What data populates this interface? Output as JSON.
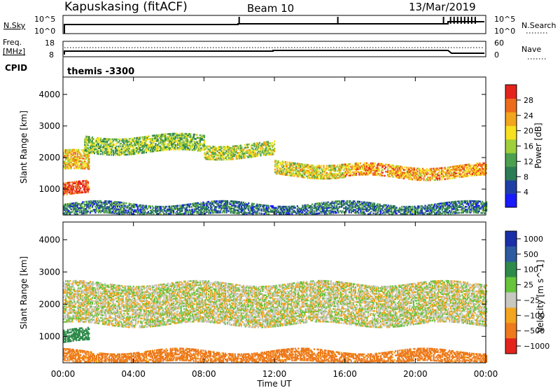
{
  "header": {
    "station": "Kapuskasing (fitACF)",
    "beam": "Beam 10",
    "date": "13/Mar/2019"
  },
  "top_panels": {
    "nsky_label": "N.Sky",
    "nsky_ticks": [
      "10^5",
      "10^0"
    ],
    "nsearch_label": "N.Search",
    "nsearch_ticks": [
      "10^5",
      "10^0"
    ],
    "freq_label": "Freq.",
    "freq_unit": "[MHz]",
    "freq_ticks": [
      "18",
      "8"
    ],
    "nave_label": "Nave",
    "nave_ticks": [
      "60",
      "0"
    ],
    "cpid_label": "CPID",
    "cpid_value": "themis -3300"
  },
  "colors": {
    "power": [
      "#1a1aff",
      "#1f3fa6",
      "#2c7d55",
      "#4da050",
      "#9fcf3a",
      "#f6e020",
      "#f2a51e",
      "#ee6b1c",
      "#e4231c"
    ],
    "velocity": [
      "#1b2fa8",
      "#2d5aa0",
      "#2e8a4a",
      "#68c43c",
      "#c8c8c0",
      "#f2a51e",
      "#ee7a1c",
      "#e4231c"
    ]
  },
  "chart_data": [
    {
      "type": "heatmap",
      "title": "",
      "ylabel": "Slant Range [km]",
      "ylim": [
        180,
        4550
      ],
      "y_ticks": [
        1000,
        2000,
        3000,
        4000
      ],
      "colorbar_label": "Power [dB]",
      "colorbar_ticks": [
        "4",
        "8",
        "12",
        "16",
        "20",
        "24",
        "28"
      ],
      "colorbar_range": [
        0,
        30
      ],
      "echo_bands": [
        {
          "t_start": 0.0,
          "t_end": 1.5,
          "range_low": 850,
          "range_high": 1250,
          "power_db": 27
        },
        {
          "t_start": 0.0,
          "t_end": 1.5,
          "range_low": 1600,
          "range_high": 2200,
          "power_db": 20
        },
        {
          "t_start": 1.2,
          "t_end": 8.0,
          "range_low": 2200,
          "range_high": 2700,
          "power_db": 14
        },
        {
          "t_start": 8.0,
          "t_end": 12.0,
          "range_low": 2050,
          "range_high": 2500,
          "power_db": 16
        },
        {
          "t_start": 12.0,
          "t_end": 16.0,
          "range_low": 1450,
          "range_high": 1900,
          "power_db": 18
        },
        {
          "t_start": 16.0,
          "t_end": 24.0,
          "range_low": 1400,
          "range_high": 1800,
          "power_db": 22
        },
        {
          "t_start": 0.0,
          "t_end": 24.0,
          "range_low": 200,
          "range_high": 600,
          "power_db": 8
        }
      ]
    },
    {
      "type": "heatmap",
      "title": "",
      "xlabel": "Time UT",
      "x_ticks": [
        "00:00",
        "04:00",
        "08:00",
        "12:00",
        "16:00",
        "20:00",
        "00:00"
      ],
      "xlim": [
        0,
        24
      ],
      "ylabel": "Slant Range [km]",
      "ylim": [
        180,
        4550
      ],
      "y_ticks": [
        1000,
        2000,
        3000,
        4000
      ],
      "colorbar_label": "Velocity [m s^-1]",
      "colorbar_ticks": [
        "1000",
        "500",
        "100",
        "25",
        "−25",
        "−100",
        "−500",
        "−1000"
      ],
      "echo_bands": [
        {
          "t_start": 0.0,
          "t_end": 1.5,
          "range_low": 850,
          "range_high": 1250,
          "velocity": 200
        },
        {
          "t_start": 0.0,
          "t_end": 24.0,
          "range_low": 1400,
          "range_high": 2700,
          "velocity": 0
        },
        {
          "t_start": 0.0,
          "t_end": 24.0,
          "range_low": 200,
          "range_high": 600,
          "velocity": -150
        }
      ]
    }
  ]
}
